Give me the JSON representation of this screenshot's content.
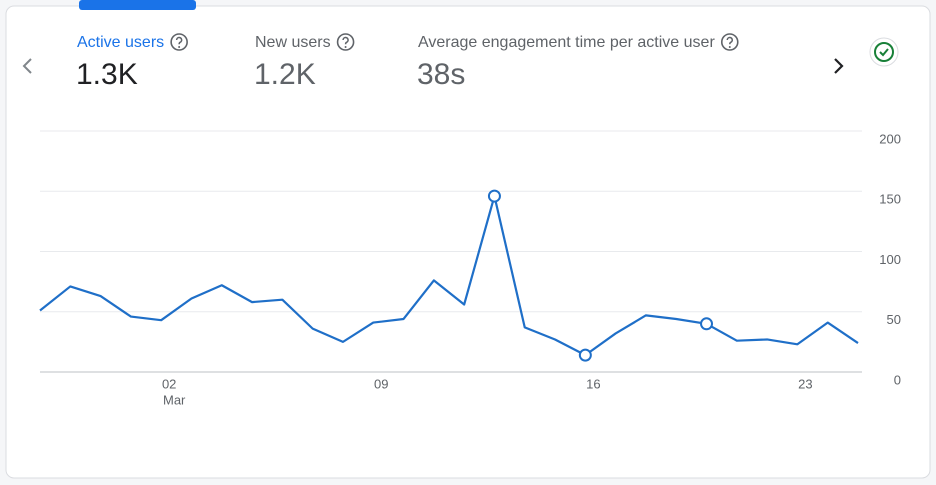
{
  "tabs": [
    {
      "label": "Active users",
      "value": "1.3K"
    },
    {
      "label": "New users",
      "value": "1.2K"
    },
    {
      "label": "Average engagement time per active user",
      "value": "38s"
    }
  ],
  "chart_data": {
    "type": "line",
    "categories": [
      null,
      null,
      null,
      null,
      "02",
      null,
      null,
      null,
      null,
      null,
      null,
      "09",
      null,
      null,
      null,
      null,
      null,
      null,
      "16",
      null,
      null,
      null,
      null,
      null,
      null,
      "23",
      null,
      null
    ],
    "month": "Mar",
    "values": [
      51,
      71,
      63,
      46,
      43,
      61,
      72,
      58,
      60,
      36,
      25,
      41,
      44,
      76,
      56,
      146,
      37,
      27,
      14,
      32,
      47,
      44,
      40,
      26,
      27,
      23,
      41,
      24
    ],
    "color": "#1f6fc8",
    "markers": [
      15,
      18,
      22
    ],
    "ylim": [
      0,
      200
    ],
    "yticks": [
      0,
      50,
      100,
      150,
      200
    ],
    "grid": true
  }
}
